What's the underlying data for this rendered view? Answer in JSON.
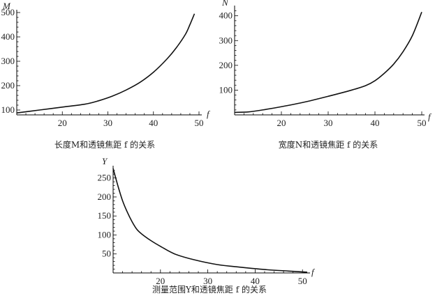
{
  "chart_data": [
    {
      "type": "line",
      "title": "",
      "caption": "长度M和透镜焦距 f 的关系",
      "xlabel": "f",
      "ylabel": "M",
      "xlim": [
        10,
        50
      ],
      "ylim": [
        80,
        500
      ],
      "xticks": [
        20,
        30,
        40,
        50
      ],
      "yticks": [
        100,
        200,
        300,
        400,
        500
      ],
      "grid": false,
      "series": [
        {
          "x": [
            10,
            15,
            20,
            25,
            28,
            31,
            34,
            37,
            40,
            43,
            45,
            47,
            48,
            49
          ],
          "y": [
            88,
            100,
            112,
            124,
            138,
            157,
            182,
            213,
            255,
            310,
            355,
            410,
            450,
            495
          ]
        }
      ]
    },
    {
      "type": "line",
      "title": "",
      "caption": "宽度N和透镜焦距 f 的关系",
      "xlabel": "f",
      "ylabel": "N",
      "xlim": [
        10,
        50
      ],
      "ylim": [
        0,
        430
      ],
      "xticks": [
        20,
        30,
        40,
        50
      ],
      "yticks": [
        100,
        200,
        300,
        400
      ],
      "grid": false,
      "series": [
        {
          "x": [
            10,
            13,
            16,
            20,
            25,
            30,
            35,
            38,
            40,
            42,
            44,
            46,
            48,
            50
          ],
          "y": [
            10,
            12,
            20,
            33,
            52,
            75,
            100,
            118,
            138,
            168,
            205,
            255,
            320,
            415
          ]
        }
      ]
    },
    {
      "type": "line",
      "title": "",
      "caption": "测量范围Y和透镜焦距 f 的关系",
      "xlabel": "f",
      "ylabel": "Y",
      "xlim": [
        10,
        51
      ],
      "ylim": [
        0,
        275
      ],
      "xticks": [
        20,
        30,
        40,
        50
      ],
      "yticks": [
        50,
        100,
        150,
        200,
        250
      ],
      "grid": false,
      "series": [
        {
          "x": [
            10,
            11,
            12,
            13,
            14,
            15,
            16,
            18,
            20,
            23,
            27,
            32,
            37,
            42,
            47,
            51
          ],
          "y": [
            275,
            230,
            190,
            160,
            135,
            115,
            103,
            85,
            70,
            50,
            35,
            22,
            15,
            9,
            5,
            2
          ]
        }
      ]
    }
  ]
}
